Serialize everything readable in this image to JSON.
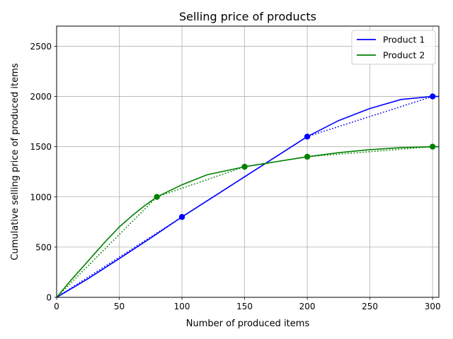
{
  "chart_data": {
    "type": "line",
    "title": "Selling price of products",
    "xlabel": "Number of produced items",
    "ylabel": "Cumulative selling price of produced items",
    "xlim": [
      0,
      305
    ],
    "ylim": [
      0,
      2700
    ],
    "xticks": [
      0,
      50,
      100,
      150,
      200,
      250,
      300
    ],
    "yticks": [
      0,
      500,
      1000,
      1500,
      2000,
      2500
    ],
    "grid": true,
    "legend_position": "top-right",
    "series": [
      {
        "name": "Product 1",
        "color": "#0000ff",
        "curve_x": [
          0,
          25,
          50,
          75,
          100,
          125,
          150,
          175,
          200,
          225,
          250,
          275,
          300,
          305
        ],
        "curve_y": [
          0,
          185,
          385,
          590,
          800,
          1000,
          1200,
          1400,
          1600,
          1760,
          1880,
          1970,
          2000,
          2000
        ],
        "points_x": [
          0,
          100,
          200,
          300
        ],
        "points_y": [
          0,
          800,
          1600,
          2000
        ]
      },
      {
        "name": "Product 2",
        "color": "#008000",
        "curve_x": [
          0,
          10,
          20,
          30,
          40,
          50,
          60,
          70,
          80,
          100,
          120,
          150,
          175,
          200,
          225,
          250,
          275,
          300,
          305
        ],
        "curve_y": [
          0,
          150,
          290,
          430,
          570,
          700,
          810,
          910,
          1000,
          1120,
          1220,
          1300,
          1350,
          1400,
          1440,
          1470,
          1490,
          1500,
          1500
        ],
        "points_x": [
          0,
          80,
          150,
          200,
          300
        ],
        "points_y": [
          0,
          1000,
          1300,
          1400,
          1500
        ]
      }
    ]
  }
}
